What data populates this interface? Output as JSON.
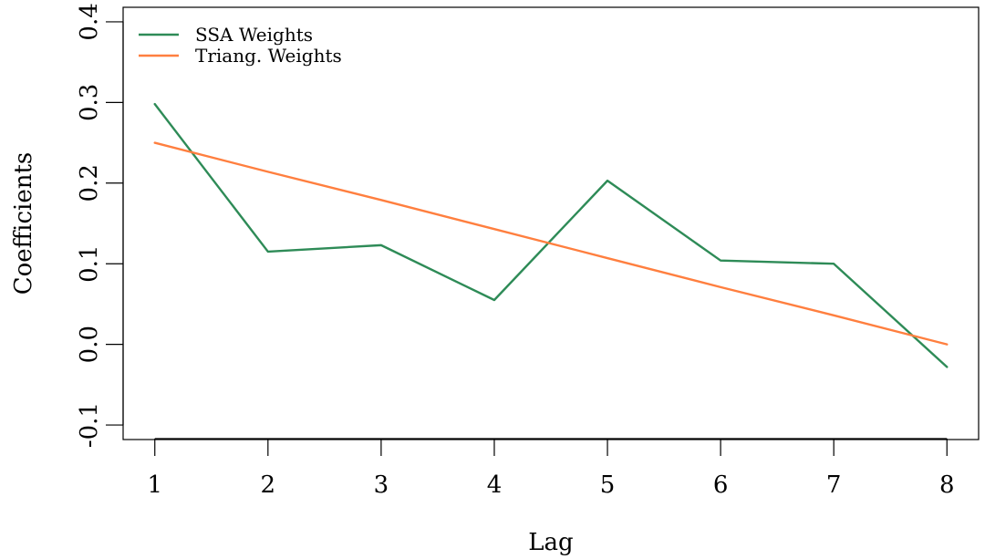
{
  "chart_data": {
    "type": "line",
    "xlabel": "Lag",
    "ylabel": "Coefficients",
    "x": [
      1,
      2,
      3,
      4,
      5,
      6,
      7,
      8
    ],
    "xlim": [
      0.72,
      8.28
    ],
    "ylim": [
      -0.118,
      0.418
    ],
    "xticks": [
      1,
      2,
      3,
      4,
      5,
      6,
      7,
      8
    ],
    "xtick_labels": [
      "1",
      "2",
      "3",
      "4",
      "5",
      "6",
      "7",
      "8"
    ],
    "yticks": [
      -0.1,
      0.0,
      0.1,
      0.2,
      0.3,
      0.4
    ],
    "ytick_labels": [
      "-0.1",
      "0.0",
      "0.1",
      "0.2",
      "0.3",
      "0.4"
    ],
    "grid": false,
    "legend_position": "top-left",
    "series": [
      {
        "name": "SSA Weights",
        "color": "#2e8b57",
        "values": [
          0.298,
          0.115,
          0.123,
          0.055,
          0.203,
          0.104,
          0.1,
          -0.028
        ]
      },
      {
        "name": "Triang. Weights",
        "color": "#ff7f3f",
        "values": [
          0.25,
          0.214,
          0.179,
          0.143,
          0.107,
          0.071,
          0.036,
          0.0
        ]
      }
    ]
  }
}
